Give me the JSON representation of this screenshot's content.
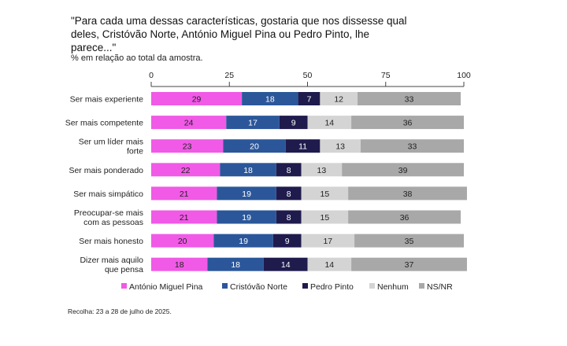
{
  "chart_data": {
    "type": "bar",
    "orientation": "horizontal",
    "stacked": true,
    "title": "\"Para cada uma dessas características, gostaria que nos dissesse qual deles, Cristóvão Norte, António Miguel Pina ou Pedro Pinto, lhe parece...\"",
    "subtitle": "% em relação ao total da amostra.",
    "xlim": [
      0,
      100
    ],
    "xticks": [
      0,
      25,
      50,
      75,
      100
    ],
    "grid": false,
    "legend_position": "bottom",
    "categories": [
      [
        "Ser mais experiente"
      ],
      [
        "Ser mais competente"
      ],
      [
        "Ser um líder mais",
        "forte"
      ],
      [
        "Ser mais ponderado"
      ],
      [
        "Ser mais simpático"
      ],
      [
        "Preocupar-se mais",
        "com as pessoas"
      ],
      [
        "Ser mais honesto"
      ],
      [
        "Dizer mais aquilo",
        "que pensa"
      ]
    ],
    "series": [
      {
        "name": "António Miguel Pina",
        "color": "#f05ae6",
        "label_color": "#222222",
        "values": [
          29,
          24,
          23,
          22,
          21,
          21,
          20,
          18
        ]
      },
      {
        "name": "Cristóvão Norte",
        "color": "#2b579a",
        "label_color": "#ffffff",
        "values": [
          18,
          17,
          20,
          18,
          19,
          19,
          19,
          18
        ]
      },
      {
        "name": "Pedro Pinto",
        "color": "#1f1b4d",
        "label_color": "#ffffff",
        "values": [
          7,
          9,
          11,
          8,
          8,
          8,
          9,
          14
        ]
      },
      {
        "name": "Nenhum",
        "color": "#d4d4d4",
        "label_color": "#222222",
        "values": [
          12,
          14,
          13,
          13,
          15,
          15,
          17,
          14
        ]
      },
      {
        "name": "NS/NR",
        "color": "#a8a8a8",
        "label_color": "#222222",
        "values": [
          33,
          36,
          33,
          39,
          38,
          36,
          35,
          37
        ]
      }
    ]
  },
  "footnote": "Recolha: 23 a 28 de julho de 2025."
}
